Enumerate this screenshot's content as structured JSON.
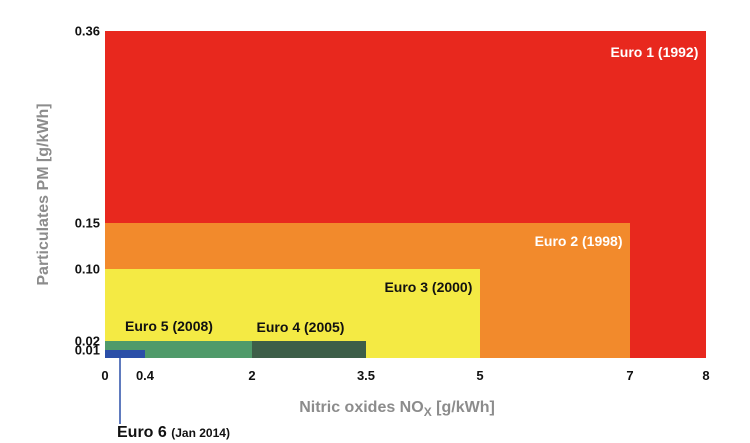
{
  "chart_data": {
    "type": "bar",
    "subtype": "nested-rectangles",
    "xlabel": "Nitric oxides NO",
    "xlabel_sub": "X",
    "xlabel_unit": " [g/kWh]",
    "ylabel": "Particulates PM [g/kWh]",
    "xlim": [
      0,
      8
    ],
    "ylim": [
      0,
      0.36
    ],
    "x_ticks": [
      {
        "value": 0,
        "label": "0"
      },
      {
        "value": 0.4,
        "label": "0.4"
      },
      {
        "value": 2,
        "label": "2"
      },
      {
        "value": 3.5,
        "label": "3.5"
      },
      {
        "value": 5,
        "label": "5"
      },
      {
        "value": 7,
        "label": "7"
      },
      {
        "value": 8,
        "label": "8"
      }
    ],
    "y_ticks": [
      {
        "value": 0.01,
        "label": "0.01"
      },
      {
        "value": 0.02,
        "label": "0.02"
      },
      {
        "value": 0.1,
        "label": "0.10"
      },
      {
        "value": 0.15,
        "label": "0.15"
      },
      {
        "value": 0.36,
        "label": "0.36"
      }
    ],
    "series": [
      {
        "name": "Euro 1 (1992)",
        "nox": 8,
        "pm": 0.36,
        "color": "#e8281e",
        "label_color": "#ffffff"
      },
      {
        "name": "Euro 2 (1998)",
        "nox": 7,
        "pm": 0.15,
        "color": "#f28a2c",
        "label_color": "#ffffff"
      },
      {
        "name": "Euro 3 (2000)",
        "nox": 5,
        "pm": 0.1,
        "color": "#f4ea44",
        "label_color": "#111111"
      },
      {
        "name": "Euro 4 (2005)",
        "nox": 3.5,
        "pm": 0.02,
        "color": "#3d5e48",
        "label_color": "#111111"
      },
      {
        "name": "Euro 5 (2008)",
        "nox": 2,
        "pm": 0.02,
        "color": "#4f9a6a",
        "label_color": "#111111"
      },
      {
        "name": "Euro 6",
        "nox": 0.4,
        "pm": 0.01,
        "color": "#2b4fa8",
        "label_color": "#111111"
      }
    ],
    "callout": {
      "main": "Euro 6",
      "sub": "(Jan 2014)"
    }
  }
}
